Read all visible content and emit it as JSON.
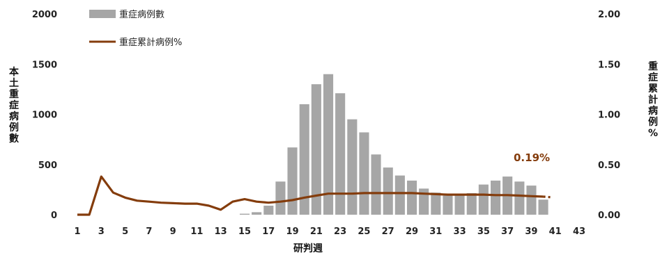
{
  "chart_data": {
    "type": "bar",
    "x": [
      1,
      2,
      3,
      4,
      5,
      6,
      7,
      8,
      9,
      10,
      11,
      12,
      13,
      14,
      15,
      16,
      17,
      18,
      19,
      20,
      21,
      22,
      23,
      24,
      25,
      26,
      27,
      28,
      29,
      30,
      31,
      32,
      33,
      34,
      35,
      36,
      37,
      38,
      39,
      40,
      41,
      42,
      43
    ],
    "x_tick_labels": [
      "1",
      "3",
      "5",
      "7",
      "9",
      "11",
      "13",
      "15",
      "17",
      "19",
      "21",
      "23",
      "25",
      "27",
      "29",
      "31",
      "33",
      "35",
      "37",
      "39",
      "41",
      "43"
    ],
    "xlabel": "研判週",
    "ylabel": "本土重症病例數",
    "y2label": "重症累計病例%",
    "ylim": [
      0,
      2000
    ],
    "y2lim": [
      0,
      2.0
    ],
    "y_tick_labels": [
      "0",
      "500",
      "1000",
      "1500",
      "2000"
    ],
    "y2_tick_labels": [
      "0.00",
      "0.50",
      "1.00",
      "1.50",
      "2.00"
    ],
    "grid": false,
    "legend_position": "top-left",
    "series": [
      {
        "name": "重症病例數",
        "kind": "bar",
        "axis": "left",
        "color": "#a6a6a6",
        "values": [
          0,
          0,
          0,
          0,
          0,
          0,
          0,
          0,
          0,
          0,
          0,
          0,
          0,
          0,
          10,
          25,
          90,
          330,
          670,
          1100,
          1300,
          1400,
          1210,
          950,
          820,
          600,
          470,
          390,
          340,
          260,
          220,
          190,
          200,
          215,
          300,
          340,
          380,
          330,
          290,
          150,
          0,
          0,
          0
        ]
      },
      {
        "name": "重症累計病例%",
        "kind": "line",
        "axis": "right",
        "color": "#843c0c",
        "values": [
          0,
          0,
          0.38,
          0.22,
          0.17,
          0.14,
          0.13,
          0.12,
          0.115,
          0.11,
          0.11,
          0.09,
          0.05,
          0.13,
          0.155,
          0.13,
          0.12,
          0.13,
          0.145,
          0.17,
          0.19,
          0.21,
          0.21,
          0.21,
          0.215,
          0.215,
          0.215,
          0.215,
          0.215,
          0.21,
          0.205,
          0.2,
          0.2,
          0.2,
          0.2,
          0.195,
          0.195,
          0.19,
          0.185,
          0.18,
          null,
          null,
          null
        ]
      }
    ],
    "annotation": {
      "text": "0.19%",
      "color": "#843c0c"
    }
  }
}
